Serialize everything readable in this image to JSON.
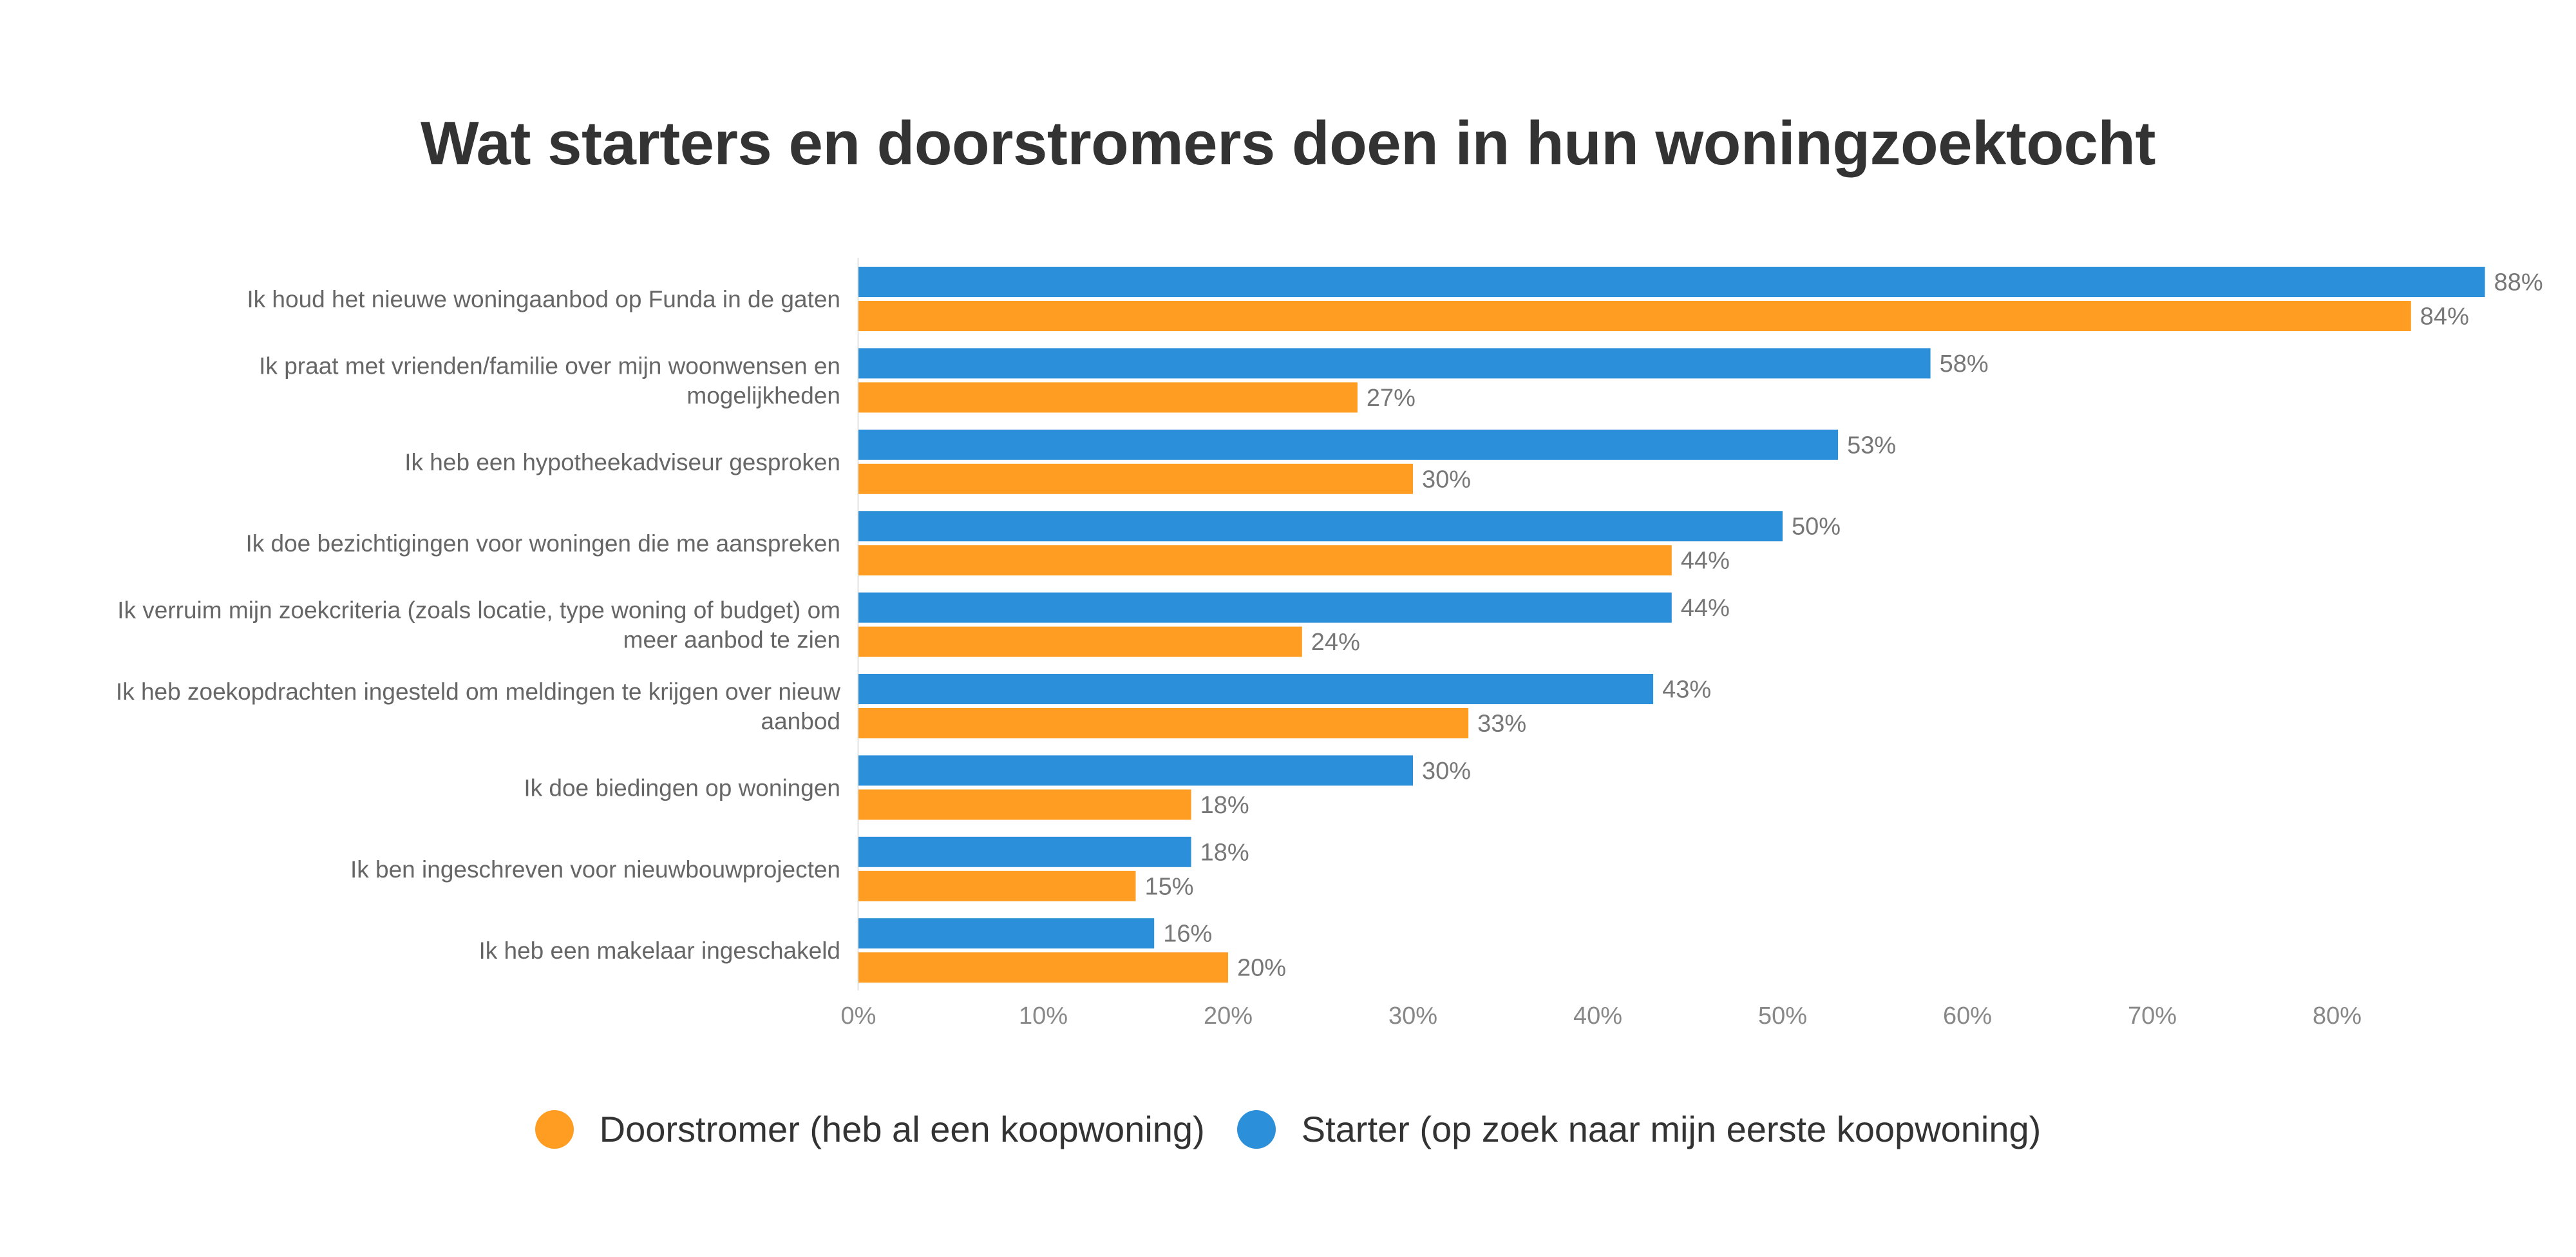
{
  "chart_data": {
    "type": "bar",
    "orientation": "horizontal",
    "title": "Wat starters en doorstromers doen in hun woningzoektocht",
    "categories": [
      [
        "Ik houd het nieuwe woningaanbod op Funda in de gaten"
      ],
      [
        "Ik praat met vrienden/familie over mijn woonwensen en",
        "mogelijkheden"
      ],
      [
        "Ik heb een hypotheekadviseur gesproken"
      ],
      [
        "Ik doe bezichtigingen voor woningen die me aanspreken"
      ],
      [
        "Ik verruim mijn zoekcriteria (zoals locatie, type woning of budget) om",
        "meer aanbod te zien"
      ],
      [
        "Ik heb zoekopdrachten ingesteld om meldingen te krijgen over nieuw",
        "aanbod"
      ],
      [
        "Ik doe biedingen op woningen"
      ],
      [
        "Ik ben ingeschreven voor nieuwbouwprojecten"
      ],
      [
        "Ik heb een makelaar ingeschakeld"
      ]
    ],
    "series": [
      {
        "name": "Starter (op zoek naar mijn eerste koopwoning)",
        "color": "#2b8fd9",
        "values": [
          88,
          58,
          53,
          50,
          44,
          43,
          30,
          18,
          16
        ],
        "labels": [
          "88%",
          "58%",
          "53%",
          "50%",
          "44%",
          "43%",
          "30%",
          "18%",
          "16%"
        ]
      },
      {
        "name": "Doorstromer (heb al een koopwoning)",
        "color": "#ff9d23",
        "values": [
          84,
          27,
          30,
          44,
          24,
          33,
          18,
          15,
          20
        ],
        "labels": [
          "84%",
          "27%",
          "30%",
          "44%",
          "24%",
          "33%",
          "18%",
          "15%",
          "20%"
        ]
      }
    ],
    "xlim": [
      0,
      88
    ],
    "xticks": [
      0,
      10,
      20,
      30,
      40,
      50,
      60,
      70,
      80
    ],
    "xtick_labels": [
      "0%",
      "10%",
      "20%",
      "30%",
      "40%",
      "50%",
      "60%",
      "70%",
      "80%"
    ],
    "grid": false,
    "legend_position": "bottom-center"
  },
  "legend": [
    {
      "label": "Doorstromer (heb al een koopwoning)",
      "color": "#ff9d23"
    },
    {
      "label": "Starter (op zoek naar mijn eerste koopwoning)",
      "color": "#2b8fd9"
    }
  ]
}
